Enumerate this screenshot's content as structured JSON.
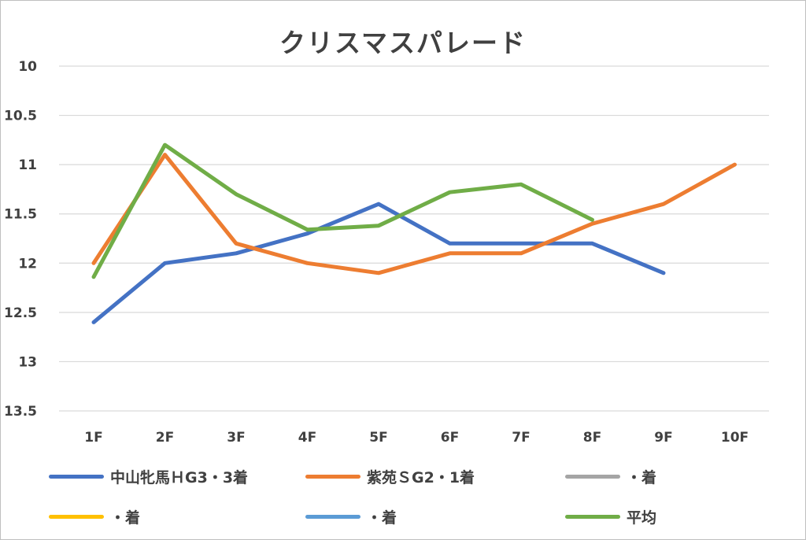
{
  "chart_data": {
    "type": "line",
    "title": "クリスマスパレード",
    "categories": [
      "1F",
      "2F",
      "3F",
      "4F",
      "5F",
      "6F",
      "7F",
      "8F",
      "9F",
      "10F"
    ],
    "y_ticks": [
      "10",
      "10.5",
      "11",
      "11.5",
      "12",
      "12.5",
      "13",
      "13.5"
    ],
    "ylim": [
      10,
      13.5
    ],
    "y_reversed": true,
    "grid": true,
    "legend_position": "bottom",
    "series": [
      {
        "name": "中山牝馬ＨG3・3着",
        "color": "#4472c4",
        "values": [
          12.6,
          12.0,
          11.9,
          11.7,
          11.4,
          11.8,
          11.8,
          11.8,
          12.1,
          null
        ]
      },
      {
        "name": "紫苑ＳG2・1着",
        "color": "#ed7d31",
        "values": [
          12.0,
          10.9,
          11.8,
          12.0,
          12.1,
          11.9,
          11.9,
          11.6,
          11.4,
          11.0
        ]
      },
      {
        "name": "・着",
        "color": "#a5a5a5",
        "values": [
          null,
          null,
          null,
          null,
          null,
          null,
          null,
          null,
          null,
          null
        ]
      },
      {
        "name": "・着",
        "color": "#ffc000",
        "values": [
          null,
          null,
          null,
          null,
          null,
          null,
          null,
          null,
          null,
          null
        ]
      },
      {
        "name": "・着",
        "color": "#5b9bd5",
        "values": [
          null,
          null,
          null,
          null,
          null,
          null,
          null,
          null,
          null,
          null
        ]
      },
      {
        "name": "平均",
        "color": "#70ad47",
        "values": [
          12.14,
          10.8,
          11.3,
          11.66,
          11.62,
          11.28,
          11.2,
          11.56,
          null,
          null
        ]
      }
    ]
  }
}
